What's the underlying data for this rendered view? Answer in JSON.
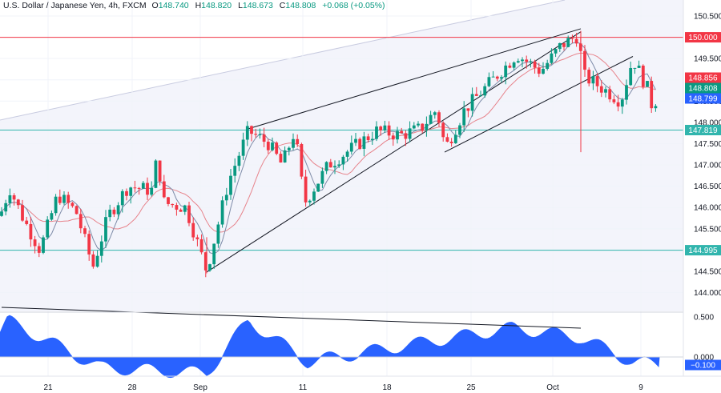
{
  "header": {
    "symbol": "U.S. Dollar / Japanese Yen, 4h, FXCM",
    "o_label": "O",
    "o_value": "148.740",
    "h_label": "H",
    "h_value": "148.820",
    "l_label": "L",
    "l_value": "148.673",
    "c_label": "C",
    "c_value": "148.808",
    "change": "+0.068 (+0.05%)"
  },
  "colors": {
    "up": "#089981",
    "down": "#f23645",
    "ma_fast": "#7e8ba8",
    "ma_slow": "#e7848c",
    "resistance": "#c2232f",
    "support": "#31b5ad",
    "oscillator": "#2962ff",
    "tag_red": "#f23645",
    "tag_green": "#089981",
    "tag_blue": "#2962ff"
  },
  "chart_data": [
    {
      "type": "candlestick",
      "title": "",
      "y_ticks": [
        144.0,
        144.5,
        145.0,
        145.5,
        146.0,
        146.5,
        147.0,
        147.5,
        148.0,
        148.5,
        149.0,
        149.5,
        150.0,
        150.5
      ],
      "y_tick_labels": [
        "144.000",
        "144.500",
        "145.000",
        "145.500",
        "146.000",
        "146.500",
        "147.000",
        "147.500",
        "148.000",
        "148.500",
        "149.000",
        "149.500",
        "150.000",
        "150.500"
      ],
      "ylim": [
        143.6,
        150.75
      ],
      "x_ticks": [
        "21",
        "28",
        "Sep",
        "11",
        "18",
        "25",
        "Oct",
        "9"
      ],
      "horizontal_levels": [
        {
          "value": 150.0,
          "label": "150.000",
          "color": "#f23645"
        },
        {
          "value": 147.819,
          "label": "147.819",
          "color": "#31b5ad"
        },
        {
          "value": 144.995,
          "label": "144.995",
          "color": "#31b5ad"
        }
      ],
      "price_tags": [
        {
          "value": 148.856,
          "label": "148.856",
          "color": "#f23645"
        },
        {
          "value": 148.808,
          "label": "148.808",
          "color": "#089981"
        },
        {
          "value": 148.799,
          "label": "148.799",
          "color": "#2962ff"
        }
      ],
      "trendlines": [
        {
          "from": {
            "x": "Sep 1",
            "y": 144.48
          },
          "to": {
            "x": "Oct 3",
            "y": 150.13
          }
        },
        {
          "from": {
            "x": "Sep 7",
            "y": 147.85
          },
          "to": {
            "x": "Oct 3",
            "y": 150.2
          }
        },
        {
          "from": {
            "x": "Sep 22",
            "y": 147.3
          },
          "to": {
            "x": "Oct 8",
            "y": 149.55
          }
        }
      ],
      "key_points": [
        {
          "x": "Aug 24",
          "y": 144.55,
          "note": "low"
        },
        {
          "x": "Sep 1",
          "y": 144.45,
          "note": "swing low"
        },
        {
          "x": "Sep 7",
          "y": 147.85,
          "note": "swing high"
        },
        {
          "x": "Sep 11",
          "y": 145.9,
          "note": "pullback low"
        },
        {
          "x": "Oct 3",
          "y": 150.15,
          "note": "high"
        },
        {
          "x": "Oct 3",
          "y": 147.3,
          "note": "spike low"
        },
        {
          "x": "Oct 10",
          "y": 148.808,
          "note": "last close"
        }
      ]
    },
    {
      "type": "area",
      "title": "",
      "y_ticks": [
        0.0,
        0.5
      ],
      "y_tick_labels": [
        "0.000",
        "0.500"
      ],
      "current_value": -0.1,
      "current_label": "−0.100",
      "trendline": {
        "from": {
          "x": "Aug 14",
          "y": 0.62
        },
        "to": {
          "x": "Oct 3",
          "y": 0.36
        }
      },
      "key_points": [
        {
          "x": "Aug 15",
          "y": 0.45
        },
        {
          "x": "Aug 25",
          "y": -0.13
        },
        {
          "x": "Sep 1",
          "y": -0.2
        },
        {
          "x": "Sep 7",
          "y": 0.45
        },
        {
          "x": "Sep 12",
          "y": -0.06
        },
        {
          "x": "Sep 28",
          "y": 0.36
        },
        {
          "x": "Oct 3",
          "y": 0.24
        },
        {
          "x": "Oct 8",
          "y": -0.06
        },
        {
          "x": "Oct 10",
          "y": -0.1
        }
      ]
    }
  ]
}
